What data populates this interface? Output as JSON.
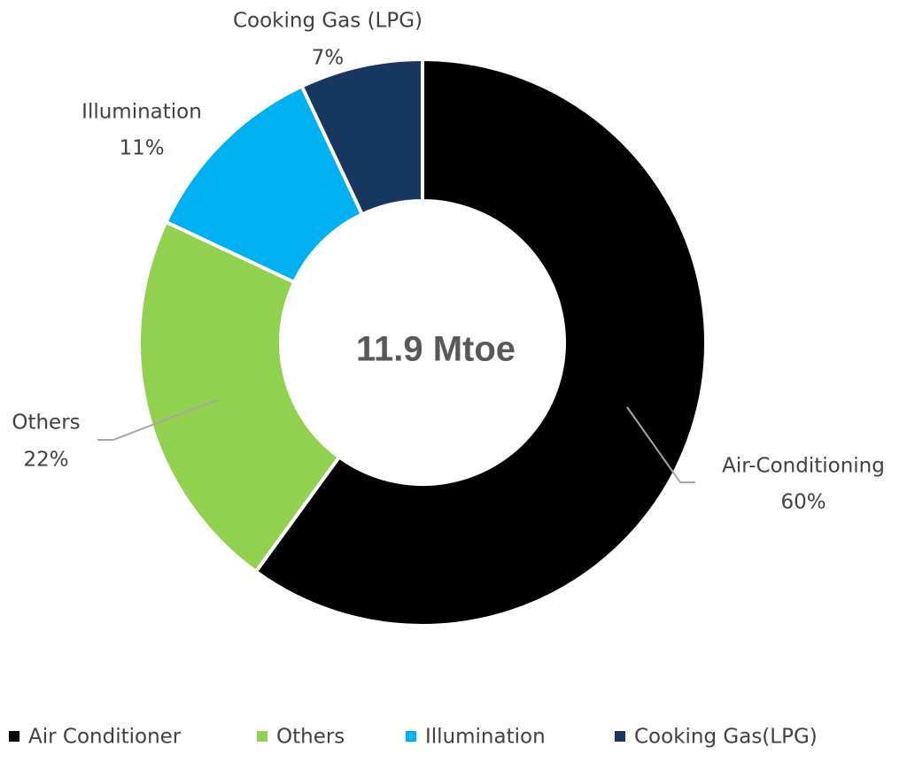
{
  "chart_data": {
    "type": "donut",
    "center_label": "11.9 Mtoe",
    "categories": [
      "Air Conditioner",
      "Others",
      "Illumination",
      "Cooking Gas(LPG)"
    ],
    "label_names": [
      "Air-Conditioning",
      "Others",
      "Illumination",
      "Cooking Gas (LPG)"
    ],
    "values": [
      60,
      22,
      11,
      7
    ],
    "value_labels": [
      "60%",
      "22%",
      "11%",
      "7%"
    ],
    "colors": [
      "#000000",
      "#92d050",
      "#00b0f0",
      "#17375e"
    ],
    "legend": "bottom"
  }
}
